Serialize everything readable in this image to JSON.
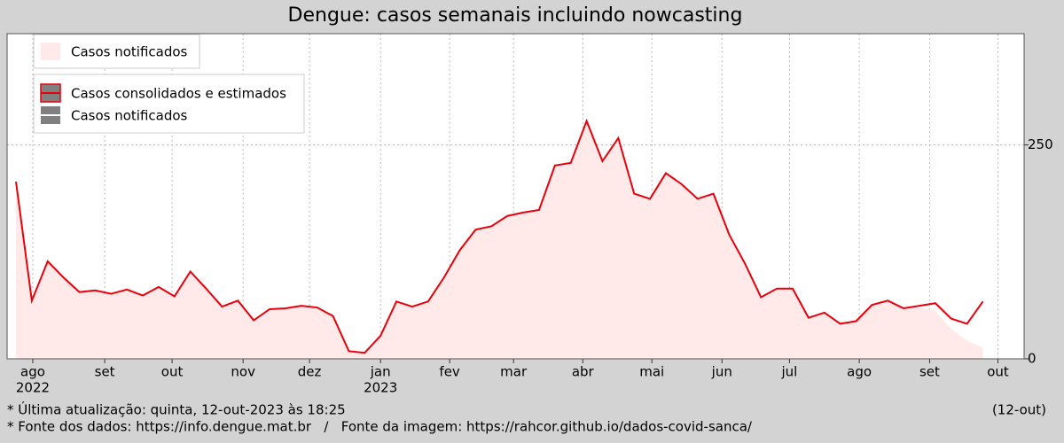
{
  "chart_data": {
    "type": "line",
    "title": "Dengue: casos semanais incluindo nowcasting",
    "x": [
      0,
      1,
      2,
      3,
      4,
      5,
      6,
      7,
      8,
      9,
      10,
      11,
      12,
      13,
      14,
      15,
      16,
      17,
      18,
      19,
      20,
      21,
      22,
      23,
      24,
      25,
      26,
      27,
      28,
      29,
      30,
      31,
      32,
      33,
      34,
      35,
      36,
      37,
      38,
      39,
      40,
      41,
      42,
      43,
      44,
      45,
      46,
      47,
      48,
      49,
      50,
      51,
      52,
      53,
      54,
      55,
      56,
      57,
      58,
      59,
      60,
      61
    ],
    "series": [
      {
        "name": "Casos consolidados e estimados",
        "color": "#e8000b",
        "style": "line",
        "values": [
          207,
          68,
          114,
          95,
          78,
          80,
          76,
          81,
          74,
          84,
          73,
          102,
          82,
          61,
          68,
          45,
          58,
          59,
          62,
          60,
          50,
          9,
          7,
          27,
          67,
          61,
          67,
          95,
          127,
          151,
          155,
          167,
          171,
          174,
          226,
          229,
          278,
          231,
          258,
          193,
          187,
          217,
          204,
          187,
          193,
          145,
          111,
          72,
          82,
          82,
          48,
          54,
          41,
          44,
          63,
          68,
          59,
          62,
          65,
          47,
          41,
          67
        ]
      },
      {
        "name": "Casos notificados",
        "color": "#ffe9e9",
        "style": "area",
        "values": [
          207,
          68,
          114,
          95,
          78,
          80,
          76,
          81,
          74,
          84,
          73,
          102,
          82,
          61,
          68,
          45,
          58,
          59,
          62,
          60,
          50,
          9,
          7,
          27,
          67,
          61,
          67,
          95,
          127,
          151,
          155,
          167,
          171,
          174,
          226,
          229,
          278,
          231,
          258,
          193,
          187,
          217,
          204,
          187,
          193,
          145,
          111,
          72,
          82,
          82,
          48,
          54,
          41,
          44,
          63,
          68,
          59,
          60,
          56,
          35,
          21,
          13
        ]
      }
    ],
    "xlim": [
      -0.56,
      63.6
    ],
    "xticks": [
      {
        "value": 1.06,
        "label": "ago"
      },
      {
        "value": 5.6,
        "label": "set"
      },
      {
        "value": 9.85,
        "label": "out"
      },
      {
        "value": 14.33,
        "label": "nov"
      },
      {
        "value": 18.52,
        "label": "dez"
      },
      {
        "value": 23.0,
        "label": "jan"
      },
      {
        "value": 27.36,
        "label": "fev"
      },
      {
        "value": 31.39,
        "label": "mar"
      },
      {
        "value": 35.76,
        "label": "abr"
      },
      {
        "value": 40.12,
        "label": "mai"
      },
      {
        "value": 44.54,
        "label": "jun"
      },
      {
        "value": 48.8,
        "label": "jul"
      },
      {
        "value": 53.2,
        "label": "ago"
      },
      {
        "value": 57.64,
        "label": "set"
      },
      {
        "value": 61.95,
        "label": "out"
      }
    ],
    "year_labels": [
      {
        "value": 1.06,
        "label": "2022"
      },
      {
        "value": 23.0,
        "label": "2023"
      }
    ],
    "ylim": [
      0,
      380
    ],
    "yticks": [
      0,
      250
    ],
    "grid": true,
    "footer": {
      "update": "* Última atualização: quinta, 12-out-2023 às 18:25",
      "update_short": "(12-out)",
      "sources": "* Fonte dos dados: https://info.dengue.mat.br   /   Fonte da imagem: https://rahcor.github.io/dados-covid-sanca/"
    }
  }
}
